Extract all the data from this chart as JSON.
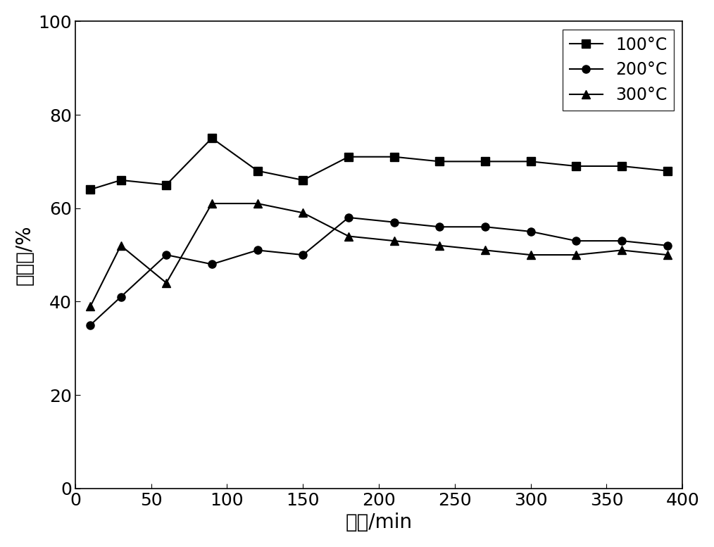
{
  "series_100C": {
    "label": "100°C",
    "x": [
      10,
      30,
      60,
      90,
      120,
      150,
      180,
      210,
      240,
      270,
      300,
      330,
      360,
      390
    ],
    "y": [
      64,
      66,
      65,
      75,
      68,
      66,
      71,
      71,
      70,
      70,
      70,
      69,
      69,
      68
    ],
    "marker": "s",
    "color": "#000000",
    "linestyle": "-"
  },
  "series_200C": {
    "label": "200°C",
    "x": [
      10,
      30,
      60,
      90,
      120,
      150,
      180,
      210,
      240,
      270,
      300,
      330,
      360,
      390
    ],
    "y": [
      35,
      41,
      50,
      48,
      51,
      50,
      58,
      57,
      56,
      56,
      55,
      53,
      53,
      52
    ],
    "marker": "o",
    "color": "#000000",
    "linestyle": "-"
  },
  "series_300C": {
    "label": "300°C",
    "x": [
      10,
      30,
      60,
      90,
      120,
      150,
      180,
      210,
      240,
      270,
      300,
      330,
      360,
      390
    ],
    "y": [
      39,
      52,
      44,
      61,
      61,
      59,
      54,
      53,
      52,
      51,
      50,
      50,
      51,
      50
    ],
    "marker": "^",
    "color": "#000000",
    "linestyle": "-"
  },
  "xlabel": "时间/min",
  "ylabel": "脱汞率/%",
  "xlim": [
    0,
    400
  ],
  "ylim": [
    0,
    100
  ],
  "xticks": [
    0,
    50,
    100,
    150,
    200,
    250,
    300,
    350,
    400
  ],
  "yticks": [
    0,
    20,
    40,
    60,
    80,
    100
  ],
  "legend_loc": "upper right",
  "background_color": "#ffffff",
  "markersize": 8,
  "linewidth": 1.5,
  "axis_fontsize": 20,
  "tick_fontsize": 18,
  "legend_fontsize": 17
}
